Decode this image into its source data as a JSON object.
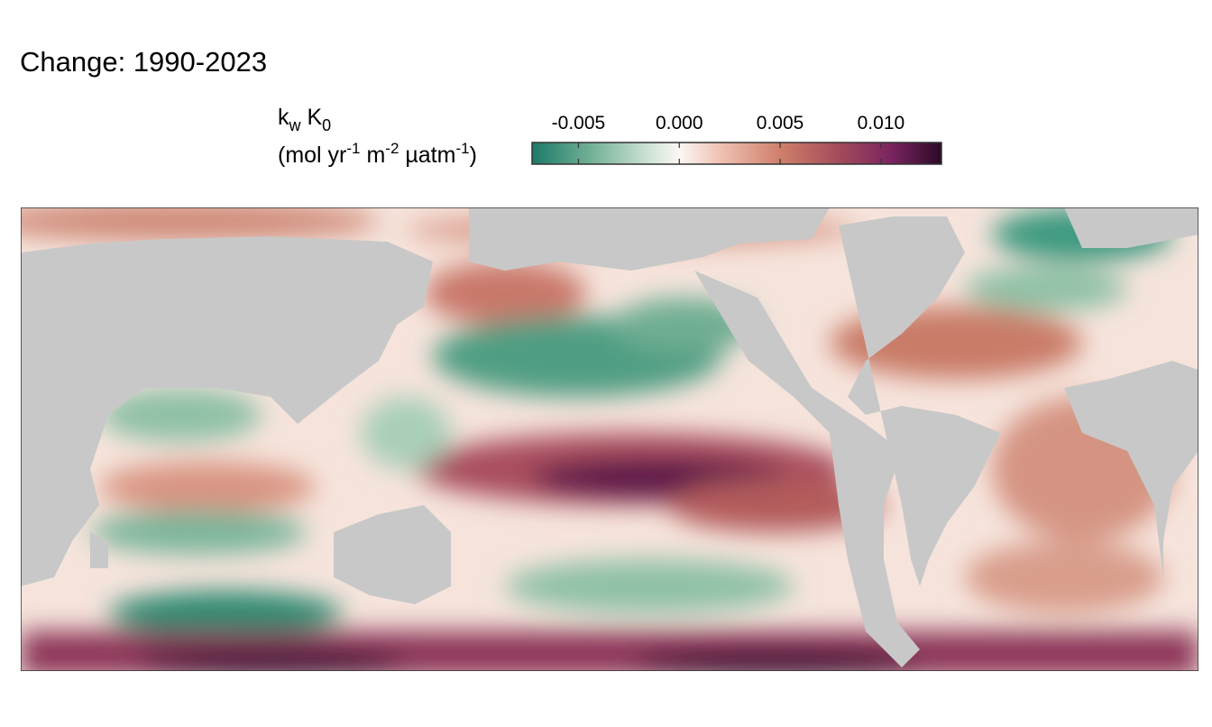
{
  "chart_data": {
    "type": "raster-map",
    "title": "Change:  1990-2023",
    "legend_title": {
      "line1": [
        "k",
        "w",
        " K",
        "0"
      ],
      "line2": [
        "(mol yr",
        "-1",
        " m",
        "-2",
        " µatm",
        "-1",
        ")"
      ]
    },
    "colorbar": {
      "lim": [
        -0.0073,
        0.013
      ],
      "ticks": [
        -0.005,
        {
          "value": 0,
          "label": "0.000"
        },
        0.005,
        {
          "value": 0.01,
          "label": "0.010"
        }
      ],
      "stops": [
        {
          "value": -0.0073,
          "color": "#1b7a68"
        },
        {
          "value": -0.0045,
          "color": "#6fae93"
        },
        {
          "value": -0.0015,
          "color": "#cfe3d6"
        },
        {
          "value": 0,
          "color": "#fbf7f4"
        },
        {
          "value": 0.002,
          "color": "#efc3b3"
        },
        {
          "value": 0.005,
          "color": "#cf7f6b"
        },
        {
          "value": 0.008,
          "color": "#a24a5a"
        },
        {
          "value": 0.0105,
          "color": "#7a2460"
        },
        {
          "value": 0.013,
          "color": "#2c0a26"
        }
      ]
    },
    "land_color": "#c8c8c8"
  }
}
